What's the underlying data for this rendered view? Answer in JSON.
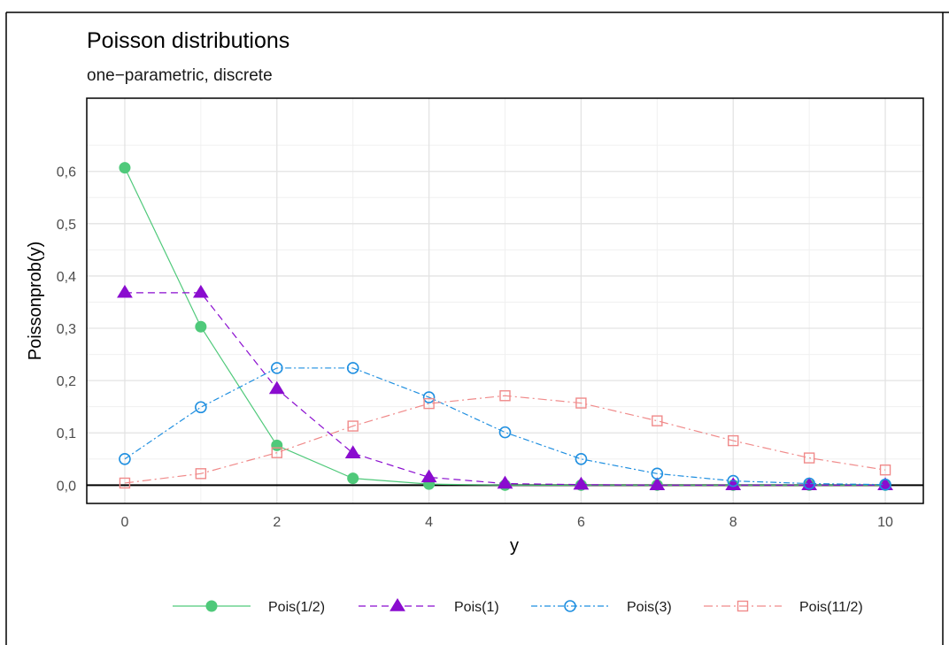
{
  "chart_data": {
    "type": "line",
    "title": "Poisson distributions",
    "subtitle": "one−parametric, discrete",
    "xlabel": "y",
    "ylabel": "Poissonprob(y)",
    "x": [
      0,
      1,
      2,
      3,
      4,
      5,
      6,
      7,
      8,
      9,
      10
    ],
    "xlim": [
      -0.5,
      10.5
    ],
    "ylim": [
      -0.035,
      0.74
    ],
    "xticks": [
      0,
      2,
      4,
      6,
      8,
      10
    ],
    "xtick_labels": [
      "0",
      "2",
      "4",
      "6",
      "8",
      "10"
    ],
    "yticks": [
      0.0,
      0.1,
      0.2,
      0.3,
      0.4,
      0.5,
      0.6
    ],
    "ytick_labels": [
      "0,0",
      "0,1",
      "0,2",
      "0,3",
      "0,4",
      "0,5",
      "0,6"
    ],
    "grid": true,
    "legend_position": "bottom",
    "series": [
      {
        "name": "Pois(1/2)",
        "color": "#4fc97a",
        "marker": "filled-circle",
        "linestyle": "solid",
        "values": [
          0.607,
          0.303,
          0.076,
          0.013,
          0.002,
          0.0,
          0.0,
          0.0,
          0.0,
          0.0,
          0.0
        ]
      },
      {
        "name": "Pois(1)",
        "color": "#8a0ccf",
        "marker": "filled-triangle",
        "linestyle": "dashed",
        "values": [
          0.368,
          0.368,
          0.184,
          0.061,
          0.015,
          0.003,
          0.001,
          0.0,
          0.0,
          0.0,
          0.0
        ]
      },
      {
        "name": "Pois(3)",
        "color": "#1f8fe0",
        "marker": "open-circle",
        "linestyle": "dotdash",
        "values": [
          0.05,
          0.149,
          0.224,
          0.224,
          0.168,
          0.101,
          0.05,
          0.022,
          0.008,
          0.003,
          0.001
        ]
      },
      {
        "name": "Pois(11/2)",
        "color": "#f08a8a",
        "marker": "open-square",
        "linestyle": "longdashdot",
        "values": [
          0.004,
          0.022,
          0.062,
          0.113,
          0.156,
          0.171,
          0.157,
          0.123,
          0.085,
          0.052,
          0.029
        ]
      }
    ]
  }
}
